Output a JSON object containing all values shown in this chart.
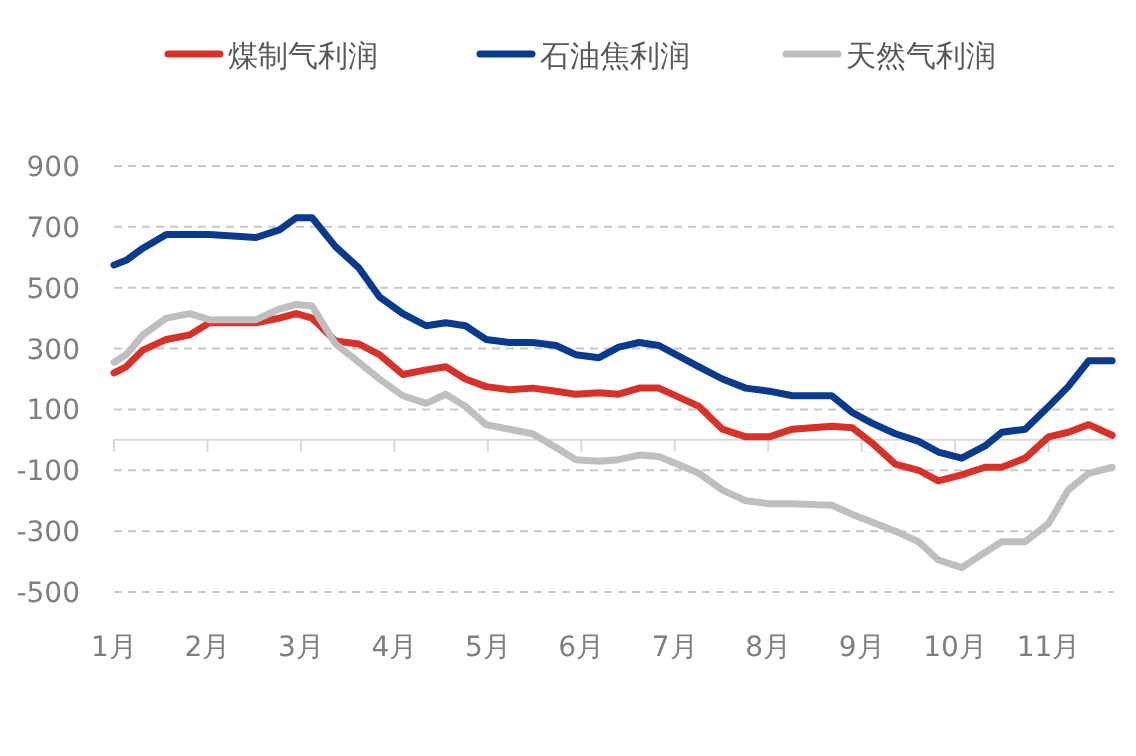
{
  "chart_data": {
    "type": "line",
    "x": [
      1.0,
      1.13,
      1.31,
      1.56,
      1.81,
      2.02,
      2.52,
      2.77,
      2.95,
      3.12,
      3.37,
      3.62,
      3.84,
      4.09,
      4.34,
      4.55,
      4.76,
      4.98,
      5.23,
      5.48,
      5.73,
      5.94,
      6.19,
      6.4,
      6.62,
      6.83,
      7.26,
      7.51,
      7.76,
      8.01,
      8.26,
      8.68,
      8.9,
      9.11,
      9.36,
      9.61,
      9.82,
      10.07,
      10.32,
      10.5,
      10.75,
      11.0,
      11.21,
      11.43,
      11.68
    ],
    "series": [
      {
        "name": "煤制气利润",
        "color": "#d7322a",
        "values": [
          220,
          240,
          295,
          330,
          345,
          385,
          385,
          400,
          415,
          400,
          325,
          315,
          280,
          215,
          230,
          240,
          200,
          175,
          165,
          170,
          160,
          150,
          155,
          150,
          170,
          170,
          110,
          35,
          10,
          10,
          35,
          45,
          40,
          -10,
          -80,
          -100,
          -135,
          -115,
          -90,
          -90,
          -60,
          10,
          25,
          50,
          15
        ]
      },
      {
        "name": "石油焦利润",
        "color": "#0a3a8c",
        "values": [
          575,
          590,
          630,
          675,
          675,
          675,
          665,
          690,
          730,
          730,
          635,
          565,
          470,
          415,
          375,
          385,
          375,
          330,
          320,
          320,
          310,
          280,
          270,
          305,
          320,
          310,
          240,
          200,
          170,
          160,
          145,
          145,
          90,
          55,
          20,
          -5,
          -40,
          -60,
          -20,
          25,
          35,
          110,
          175,
          260,
          260
        ]
      },
      {
        "name": "天然气利润",
        "color": "#bfbfbf",
        "values": [
          255,
          280,
          345,
          400,
          415,
          395,
          395,
          430,
          445,
          440,
          315,
          255,
          200,
          145,
          120,
          150,
          110,
          50,
          35,
          20,
          -25,
          -65,
          -70,
          -65,
          -50,
          -55,
          -110,
          -165,
          -200,
          -210,
          -210,
          -215,
          -245,
          -270,
          -300,
          -335,
          -395,
          -420,
          -370,
          -335,
          -335,
          -275,
          -165,
          -110,
          -90
        ]
      }
    ],
    "xlim": [
      1,
      11.7
    ],
    "xticks": [
      {
        "value": 1,
        "label": "1月"
      },
      {
        "value": 2,
        "label": "2月"
      },
      {
        "value": 3,
        "label": "3月"
      },
      {
        "value": 4,
        "label": "4月"
      },
      {
        "value": 5,
        "label": "5月"
      },
      {
        "value": 6,
        "label": "6月"
      },
      {
        "value": 7,
        "label": "7月"
      },
      {
        "value": 8,
        "label": "8月"
      },
      {
        "value": 9,
        "label": "9月"
      },
      {
        "value": 10,
        "label": "10月"
      },
      {
        "value": 11,
        "label": "11月"
      }
    ],
    "ylim": [
      -500,
      900
    ],
    "yticks": [
      -500,
      -300,
      -100,
      100,
      300,
      500,
      700,
      900
    ],
    "grid": "y",
    "legend": "top",
    "marker": "none",
    "line_style": "solid"
  }
}
